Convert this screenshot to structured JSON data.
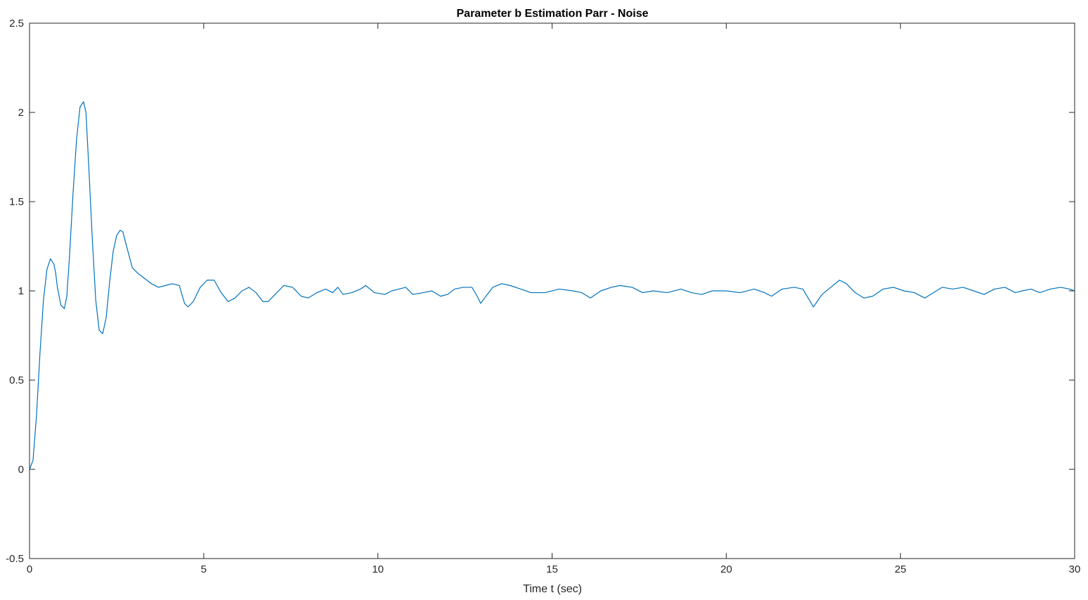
{
  "chart_data": {
    "type": "line",
    "title": "Parameter b Estimation Parr - Noise",
    "xlabel": "Time t (sec)",
    "ylabel": "",
    "xlim": [
      0,
      30
    ],
    "ylim": [
      -0.5,
      2.5
    ],
    "xticks": [
      "0",
      "5",
      "10",
      "15",
      "20",
      "25",
      "30"
    ],
    "yticks": [
      "-0.5",
      "0",
      "0.5",
      "1",
      "1.5",
      "2",
      "2.5"
    ],
    "grid": false,
    "series": [
      {
        "color": "#0072bd",
        "x": [
          0,
          0.1,
          0.2,
          0.3,
          0.4,
          0.5,
          0.6,
          0.7,
          0.75,
          0.8,
          0.9,
          1.0,
          1.07,
          1.15,
          1.25,
          1.35,
          1.45,
          1.55,
          1.62,
          1.7,
          1.8,
          1.9,
          2.0,
          2.1,
          2.2,
          2.3,
          2.4,
          2.5,
          2.6,
          2.68,
          2.8,
          2.95,
          3.1,
          3.3,
          3.5,
          3.7,
          3.9,
          4.1,
          4.3,
          4.45,
          4.55,
          4.7,
          4.9,
          5.1,
          5.3,
          5.5,
          5.7,
          5.9,
          6.1,
          6.3,
          6.5,
          6.7,
          6.85,
          7.05,
          7.3,
          7.55,
          7.8,
          8.0,
          8.25,
          8.5,
          8.7,
          8.85,
          9.0,
          9.25,
          9.5,
          9.65,
          9.9,
          10.2,
          10.4,
          10.6,
          10.8,
          11.0,
          11.3,
          11.55,
          11.8,
          12.0,
          12.2,
          12.45,
          12.7,
          12.85,
          12.95,
          13.1,
          13.3,
          13.55,
          13.8,
          14.1,
          14.4,
          14.8,
          15.2,
          15.6,
          15.85,
          16.1,
          16.4,
          16.7,
          16.95,
          17.3,
          17.6,
          17.9,
          18.3,
          18.7,
          19.0,
          19.3,
          19.6,
          20.0,
          20.4,
          20.8,
          21.1,
          21.3,
          21.6,
          21.95,
          22.2,
          22.35,
          22.5,
          22.75,
          23.0,
          23.25,
          23.45,
          23.7,
          23.95,
          24.2,
          24.5,
          24.8,
          25.1,
          25.4,
          25.7,
          25.95,
          26.2,
          26.5,
          26.8,
          27.1,
          27.4,
          27.7,
          28.0,
          28.3,
          28.5,
          28.75,
          29.0,
          29.3,
          29.6,
          29.85,
          30.0
        ],
        "y": [
          0,
          0.05,
          0.3,
          0.65,
          0.95,
          1.12,
          1.18,
          1.15,
          1.1,
          1.02,
          0.92,
          0.9,
          0.97,
          1.2,
          1.55,
          1.85,
          2.03,
          2.06,
          2.0,
          1.7,
          1.3,
          0.95,
          0.78,
          0.76,
          0.85,
          1.05,
          1.22,
          1.31,
          1.34,
          1.33,
          1.24,
          1.13,
          1.1,
          1.07,
          1.04,
          1.02,
          1.03,
          1.04,
          1.03,
          0.93,
          0.91,
          0.94,
          1.02,
          1.06,
          1.06,
          0.99,
          0.94,
          0.96,
          1.0,
          1.02,
          0.99,
          0.94,
          0.94,
          0.98,
          1.03,
          1.02,
          0.97,
          0.96,
          0.99,
          1.01,
          0.99,
          1.02,
          0.98,
          0.99,
          1.01,
          1.03,
          0.99,
          0.98,
          1.0,
          1.01,
          1.02,
          0.98,
          0.99,
          1.0,
          0.97,
          0.98,
          1.01,
          1.02,
          1.02,
          0.97,
          0.93,
          0.97,
          1.02,
          1.04,
          1.03,
          1.01,
          0.99,
          0.99,
          1.01,
          1.0,
          0.99,
          0.96,
          1.0,
          1.02,
          1.03,
          1.02,
          0.99,
          1.0,
          0.99,
          1.01,
          0.99,
          0.98,
          1.0,
          1.0,
          0.99,
          1.01,
          0.99,
          0.97,
          1.01,
          1.02,
          1.01,
          0.96,
          0.91,
          0.98,
          1.02,
          1.06,
          1.04,
          0.99,
          0.96,
          0.97,
          1.01,
          1.02,
          1.0,
          0.99,
          0.96,
          0.99,
          1.02,
          1.01,
          1.02,
          1.0,
          0.98,
          1.01,
          1.02,
          0.99,
          1.0,
          1.01,
          0.99,
          1.01,
          1.02,
          1.01,
          1.0
        ]
      }
    ]
  }
}
